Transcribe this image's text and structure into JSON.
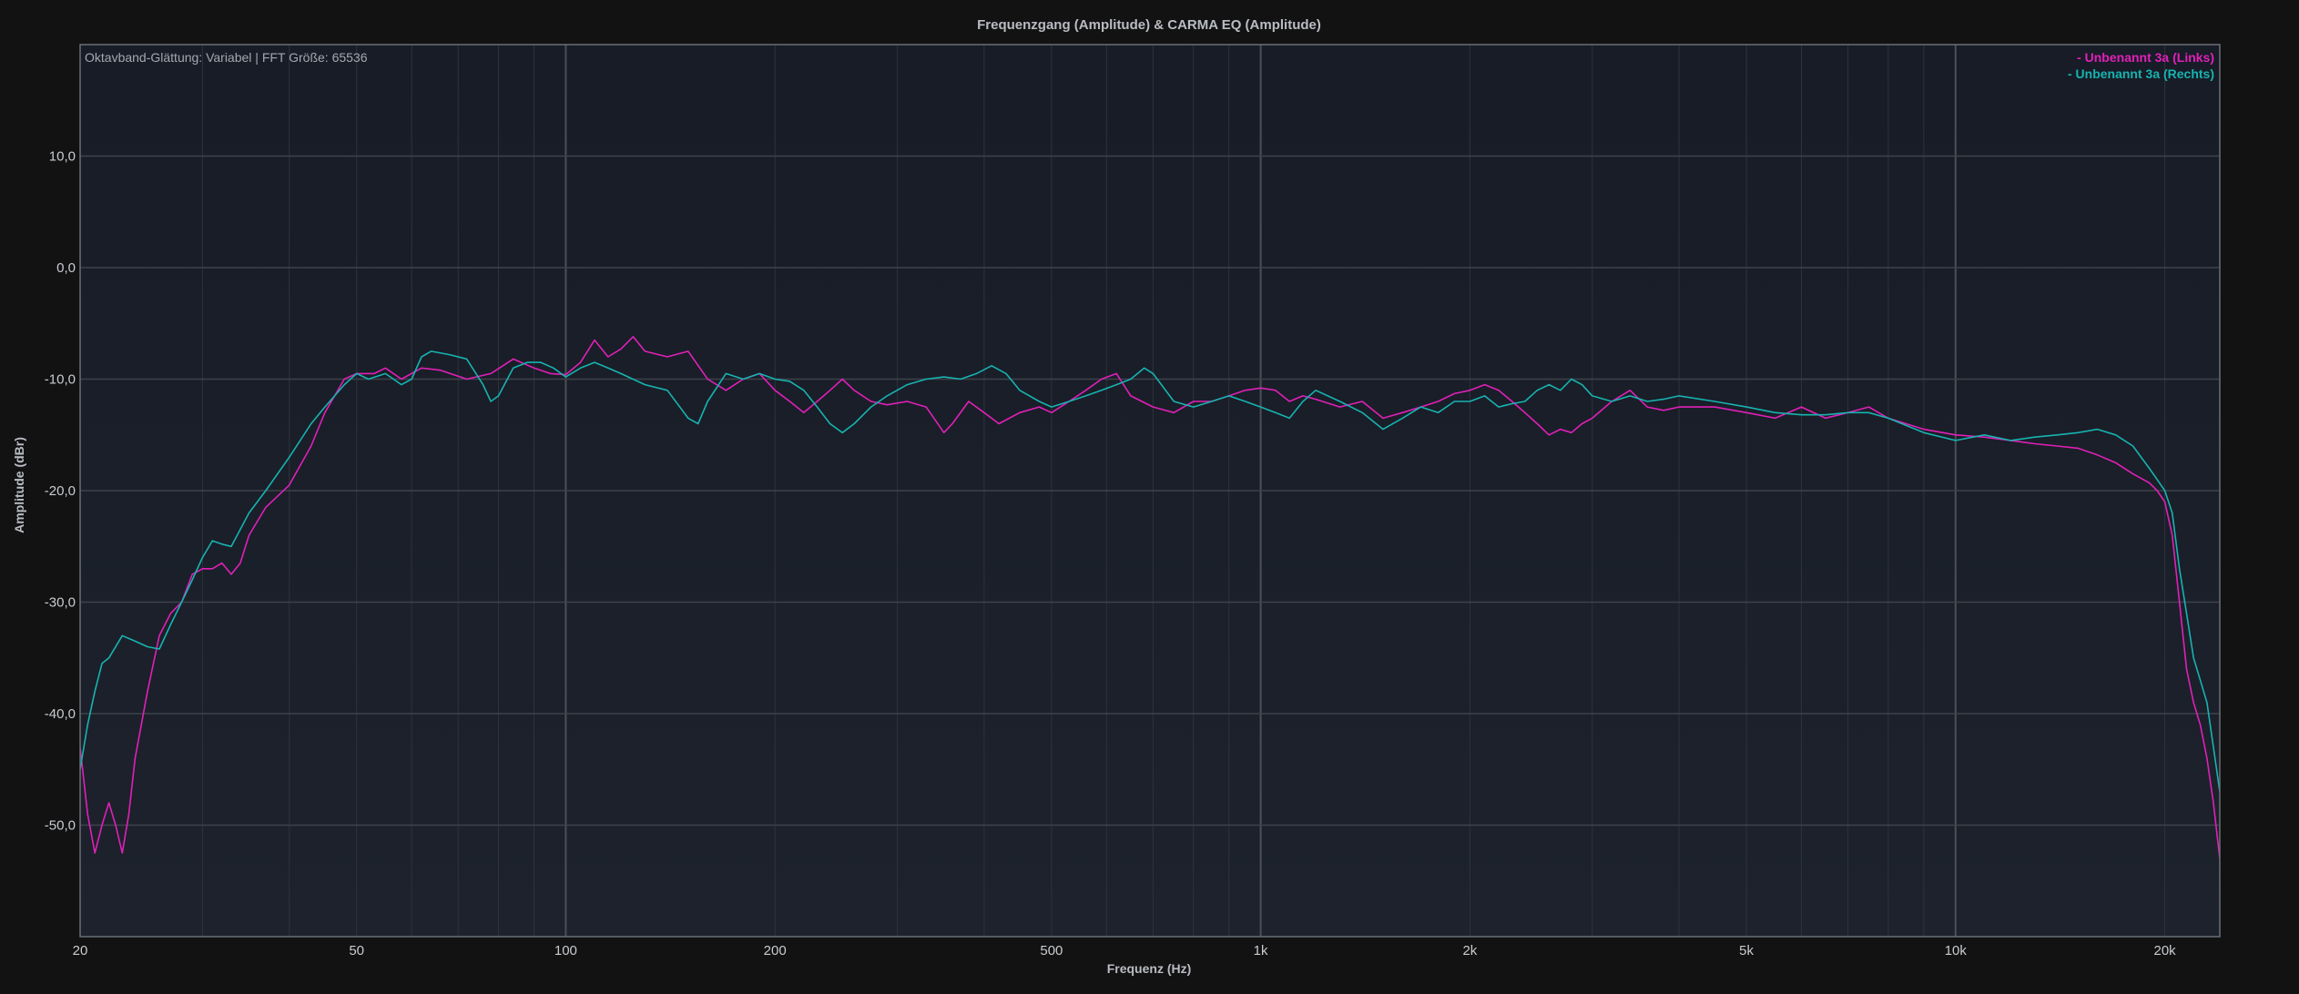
{
  "chart_data": {
    "type": "line",
    "title": "Frequenzgang (Amplitude) & CARMA EQ (Amplitude)",
    "subtitle": "Oktavband-Glättung: Variabel | FFT Größe: 65536",
    "xlabel": "Frequenz (Hz)",
    "ylabel": "Amplitude (dBr)",
    "x_scale": "log",
    "xlim": [
      20,
      24000
    ],
    "ylim": [
      -60,
      20
    ],
    "x_ticks": [
      {
        "value": 20,
        "label": "20"
      },
      {
        "value": 50,
        "label": "50"
      },
      {
        "value": 100,
        "label": "100"
      },
      {
        "value": 200,
        "label": "200"
      },
      {
        "value": 500,
        "label": "500"
      },
      {
        "value": 1000,
        "label": "1k"
      },
      {
        "value": 2000,
        "label": "2k"
      },
      {
        "value": 5000,
        "label": "5k"
      },
      {
        "value": 10000,
        "label": "10k"
      },
      {
        "value": 20000,
        "label": "20k"
      }
    ],
    "y_ticks": [
      {
        "value": 10,
        "label": "10,0"
      },
      {
        "value": 0,
        "label": "0,0"
      },
      {
        "value": -10,
        "label": "-10,0"
      },
      {
        "value": -20,
        "label": "-20,0"
      },
      {
        "value": -30,
        "label": "-30,0"
      },
      {
        "value": -40,
        "label": "-40,0"
      },
      {
        "value": -50,
        "label": "-50,0"
      }
    ],
    "grid": true,
    "legend_position": "top-right",
    "series": [
      {
        "name": "- Unbenannt 3a (Links)",
        "color": "#e020b8",
        "points": [
          [
            20,
            -43
          ],
          [
            20.5,
            -49
          ],
          [
            21,
            -52.5
          ],
          [
            21.5,
            -50
          ],
          [
            22,
            -48
          ],
          [
            22.5,
            -50
          ],
          [
            23,
            -52.5
          ],
          [
            23.5,
            -49
          ],
          [
            24,
            -44
          ],
          [
            25,
            -38
          ],
          [
            26,
            -33
          ],
          [
            27,
            -31
          ],
          [
            28,
            -30
          ],
          [
            29,
            -27.5
          ],
          [
            30,
            -27
          ],
          [
            31,
            -27
          ],
          [
            32,
            -26.5
          ],
          [
            33,
            -27.5
          ],
          [
            34,
            -26.5
          ],
          [
            35,
            -24
          ],
          [
            37,
            -21.5
          ],
          [
            40,
            -19.5
          ],
          [
            43,
            -16
          ],
          [
            45,
            -13
          ],
          [
            48,
            -10
          ],
          [
            50,
            -9.5
          ],
          [
            53,
            -9.5
          ],
          [
            55,
            -9
          ],
          [
            58,
            -10
          ],
          [
            62,
            -9
          ],
          [
            66,
            -9.2
          ],
          [
            72,
            -10
          ],
          [
            78,
            -9.5
          ],
          [
            84,
            -8.2
          ],
          [
            90,
            -9
          ],
          [
            95,
            -9.5
          ],
          [
            100,
            -9.6
          ],
          [
            105,
            -8.5
          ],
          [
            110,
            -6.5
          ],
          [
            115,
            -8
          ],
          [
            120,
            -7.3
          ],
          [
            125,
            -6.2
          ],
          [
            130,
            -7.5
          ],
          [
            140,
            -8
          ],
          [
            150,
            -7.5
          ],
          [
            160,
            -10
          ],
          [
            170,
            -11
          ],
          [
            180,
            -10
          ],
          [
            190,
            -9.5
          ],
          [
            200,
            -11
          ],
          [
            210,
            -12
          ],
          [
            220,
            -13
          ],
          [
            230,
            -12
          ],
          [
            240,
            -11
          ],
          [
            250,
            -10
          ],
          [
            260,
            -11
          ],
          [
            275,
            -12
          ],
          [
            290,
            -12.3
          ],
          [
            310,
            -12
          ],
          [
            330,
            -12.5
          ],
          [
            350,
            -14.8
          ],
          [
            360,
            -14
          ],
          [
            380,
            -12
          ],
          [
            400,
            -13
          ],
          [
            420,
            -14
          ],
          [
            450,
            -13
          ],
          [
            480,
            -12.5
          ],
          [
            500,
            -13
          ],
          [
            530,
            -12
          ],
          [
            560,
            -11
          ],
          [
            590,
            -10
          ],
          [
            620,
            -9.5
          ],
          [
            650,
            -11.5
          ],
          [
            700,
            -12.5
          ],
          [
            750,
            -13
          ],
          [
            800,
            -12
          ],
          [
            850,
            -12
          ],
          [
            900,
            -11.5
          ],
          [
            950,
            -11
          ],
          [
            1000,
            -10.8
          ],
          [
            1050,
            -11
          ],
          [
            1100,
            -12
          ],
          [
            1150,
            -11.5
          ],
          [
            1200,
            -11.8
          ],
          [
            1300,
            -12.5
          ],
          [
            1400,
            -12
          ],
          [
            1500,
            -13.5
          ],
          [
            1600,
            -13
          ],
          [
            1700,
            -12.5
          ],
          [
            1800,
            -12
          ],
          [
            1900,
            -11.3
          ],
          [
            2000,
            -11
          ],
          [
            2100,
            -10.5
          ],
          [
            2200,
            -11
          ],
          [
            2300,
            -12
          ],
          [
            2400,
            -13
          ],
          [
            2500,
            -14
          ],
          [
            2600,
            -15
          ],
          [
            2700,
            -14.5
          ],
          [
            2800,
            -14.8
          ],
          [
            2900,
            -14
          ],
          [
            3000,
            -13.5
          ],
          [
            3200,
            -12
          ],
          [
            3400,
            -11
          ],
          [
            3600,
            -12.5
          ],
          [
            3800,
            -12.8
          ],
          [
            4000,
            -12.5
          ],
          [
            4500,
            -12.5
          ],
          [
            5000,
            -13
          ],
          [
            5500,
            -13.5
          ],
          [
            6000,
            -12.5
          ],
          [
            6500,
            -13.5
          ],
          [
            7000,
            -13
          ],
          [
            7500,
            -12.5
          ],
          [
            8000,
            -13.5
          ],
          [
            9000,
            -14.5
          ],
          [
            10000,
            -15
          ],
          [
            11000,
            -15.2
          ],
          [
            12000,
            -15.5
          ],
          [
            13000,
            -15.8
          ],
          [
            14000,
            -16
          ],
          [
            15000,
            -16.2
          ],
          [
            16000,
            -16.8
          ],
          [
            17000,
            -17.5
          ],
          [
            18000,
            -18.5
          ],
          [
            19000,
            -19.3
          ],
          [
            19500,
            -20
          ],
          [
            20000,
            -21
          ],
          [
            20500,
            -24
          ],
          [
            21000,
            -30
          ],
          [
            21500,
            -36
          ],
          [
            22000,
            -39
          ],
          [
            22500,
            -41
          ],
          [
            23000,
            -44
          ],
          [
            23500,
            -48
          ],
          [
            24000,
            -53
          ]
        ]
      },
      {
        "name": "- Unbenannt 3a (Rechts)",
        "color": "#17b3b0",
        "points": [
          [
            20,
            -45
          ],
          [
            20.5,
            -41
          ],
          [
            21,
            -38
          ],
          [
            21.5,
            -35.5
          ],
          [
            22,
            -35
          ],
          [
            23,
            -33
          ],
          [
            24,
            -33.5
          ],
          [
            25,
            -34
          ],
          [
            26,
            -34.2
          ],
          [
            27,
            -32
          ],
          [
            28,
            -30
          ],
          [
            29,
            -28
          ],
          [
            30,
            -26
          ],
          [
            31,
            -24.5
          ],
          [
            32,
            -24.8
          ],
          [
            33,
            -25
          ],
          [
            35,
            -22
          ],
          [
            37,
            -20
          ],
          [
            40,
            -17
          ],
          [
            43,
            -14
          ],
          [
            45,
            -12.5
          ],
          [
            48,
            -10.5
          ],
          [
            50,
            -9.5
          ],
          [
            52,
            -10
          ],
          [
            55,
            -9.5
          ],
          [
            58,
            -10.5
          ],
          [
            60,
            -10
          ],
          [
            62,
            -8
          ],
          [
            64,
            -7.5
          ],
          [
            68,
            -7.8
          ],
          [
            72,
            -8.2
          ],
          [
            76,
            -10.5
          ],
          [
            78,
            -12
          ],
          [
            80,
            -11.5
          ],
          [
            84,
            -9
          ],
          [
            88,
            -8.5
          ],
          [
            92,
            -8.5
          ],
          [
            96,
            -9
          ],
          [
            100,
            -9.8
          ],
          [
            105,
            -9
          ],
          [
            110,
            -8.5
          ],
          [
            115,
            -9
          ],
          [
            120,
            -9.5
          ],
          [
            130,
            -10.5
          ],
          [
            140,
            -11
          ],
          [
            150,
            -13.5
          ],
          [
            155,
            -14
          ],
          [
            160,
            -12
          ],
          [
            170,
            -9.5
          ],
          [
            180,
            -10
          ],
          [
            190,
            -9.5
          ],
          [
            200,
            -10
          ],
          [
            210,
            -10.2
          ],
          [
            220,
            -11
          ],
          [
            230,
            -12.5
          ],
          [
            240,
            -14
          ],
          [
            250,
            -14.8
          ],
          [
            260,
            -14
          ],
          [
            275,
            -12.5
          ],
          [
            290,
            -11.5
          ],
          [
            310,
            -10.5
          ],
          [
            330,
            -10
          ],
          [
            350,
            -9.8
          ],
          [
            370,
            -10
          ],
          [
            390,
            -9.5
          ],
          [
            410,
            -8.8
          ],
          [
            430,
            -9.5
          ],
          [
            450,
            -11
          ],
          [
            480,
            -12
          ],
          [
            500,
            -12.5
          ],
          [
            530,
            -12
          ],
          [
            560,
            -11.5
          ],
          [
            590,
            -11
          ],
          [
            620,
            -10.5
          ],
          [
            650,
            -10
          ],
          [
            680,
            -9
          ],
          [
            700,
            -9.5
          ],
          [
            750,
            -12
          ],
          [
            800,
            -12.5
          ],
          [
            850,
            -12
          ],
          [
            900,
            -11.5
          ],
          [
            950,
            -12
          ],
          [
            1000,
            -12.5
          ],
          [
            1050,
            -13
          ],
          [
            1100,
            -13.5
          ],
          [
            1150,
            -12
          ],
          [
            1200,
            -11
          ],
          [
            1300,
            -12
          ],
          [
            1400,
            -13
          ],
          [
            1500,
            -14.5
          ],
          [
            1600,
            -13.5
          ],
          [
            1700,
            -12.5
          ],
          [
            1800,
            -13
          ],
          [
            1900,
            -12
          ],
          [
            2000,
            -12
          ],
          [
            2100,
            -11.5
          ],
          [
            2200,
            -12.5
          ],
          [
            2300,
            -12.2
          ],
          [
            2400,
            -12
          ],
          [
            2500,
            -11
          ],
          [
            2600,
            -10.5
          ],
          [
            2700,
            -11
          ],
          [
            2800,
            -10
          ],
          [
            2900,
            -10.5
          ],
          [
            3000,
            -11.5
          ],
          [
            3200,
            -12
          ],
          [
            3400,
            -11.5
          ],
          [
            3600,
            -12
          ],
          [
            3800,
            -11.8
          ],
          [
            4000,
            -11.5
          ],
          [
            4500,
            -12
          ],
          [
            5000,
            -12.5
          ],
          [
            5500,
            -13
          ],
          [
            6000,
            -13.2
          ],
          [
            6500,
            -13.2
          ],
          [
            7000,
            -13
          ],
          [
            7500,
            -13
          ],
          [
            8000,
            -13.5
          ],
          [
            9000,
            -14.8
          ],
          [
            10000,
            -15.5
          ],
          [
            11000,
            -15
          ],
          [
            12000,
            -15.5
          ],
          [
            13000,
            -15.2
          ],
          [
            14000,
            -15
          ],
          [
            15000,
            -14.8
          ],
          [
            16000,
            -14.5
          ],
          [
            17000,
            -15
          ],
          [
            18000,
            -16
          ],
          [
            19000,
            -18
          ],
          [
            19500,
            -19
          ],
          [
            20000,
            -20
          ],
          [
            20500,
            -22
          ],
          [
            21000,
            -27
          ],
          [
            21500,
            -31
          ],
          [
            22000,
            -35
          ],
          [
            22500,
            -37
          ],
          [
            23000,
            -39
          ],
          [
            23500,
            -43
          ],
          [
            24000,
            -47
          ]
        ]
      }
    ]
  }
}
